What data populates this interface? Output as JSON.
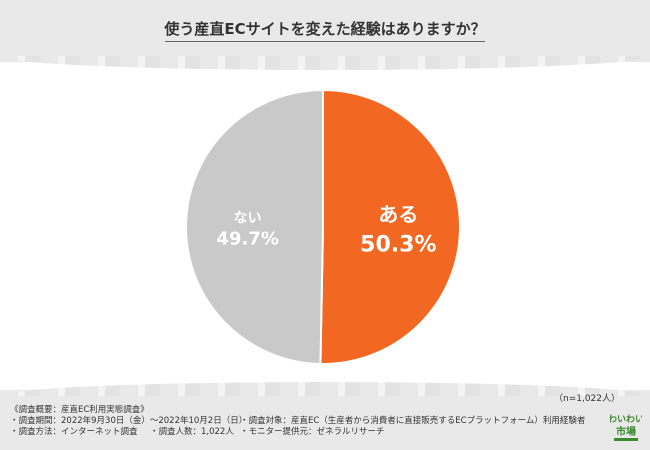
{
  "chart_data": {
    "type": "pie",
    "title": "使う産直ECサイトを変えた経験はありますか？",
    "slices": [
      {
        "label": "ある",
        "value": 50.3,
        "value_label": "50.3%",
        "color": "#f26722"
      },
      {
        "label": "ない",
        "value": 49.7,
        "value_label": "49.7%",
        "color": "#c9c9c9"
      }
    ],
    "start_angle_deg": 0,
    "direction": "clockwise"
  },
  "n_label": "（n=1,022人）",
  "notes": {
    "header": "《調査概要：産直EC利用実態調査》",
    "rows": [
      [
        "・調査期間：2022年9月30日（金）〜2022年10月2日（日）",
        "・調査対象：産直EC（生産者から消費者に直接販売するECプラットフォーム）利用経験者"
      ],
      [
        "・調査方法：インターネット調査",
        "・調査人数：1,022人",
        "・モニター提供元：ゼネラルリサーチ"
      ]
    ]
  },
  "logo": {
    "text_top": "わいわい",
    "text_bottom": "市場",
    "color": "#3a8a2e"
  }
}
